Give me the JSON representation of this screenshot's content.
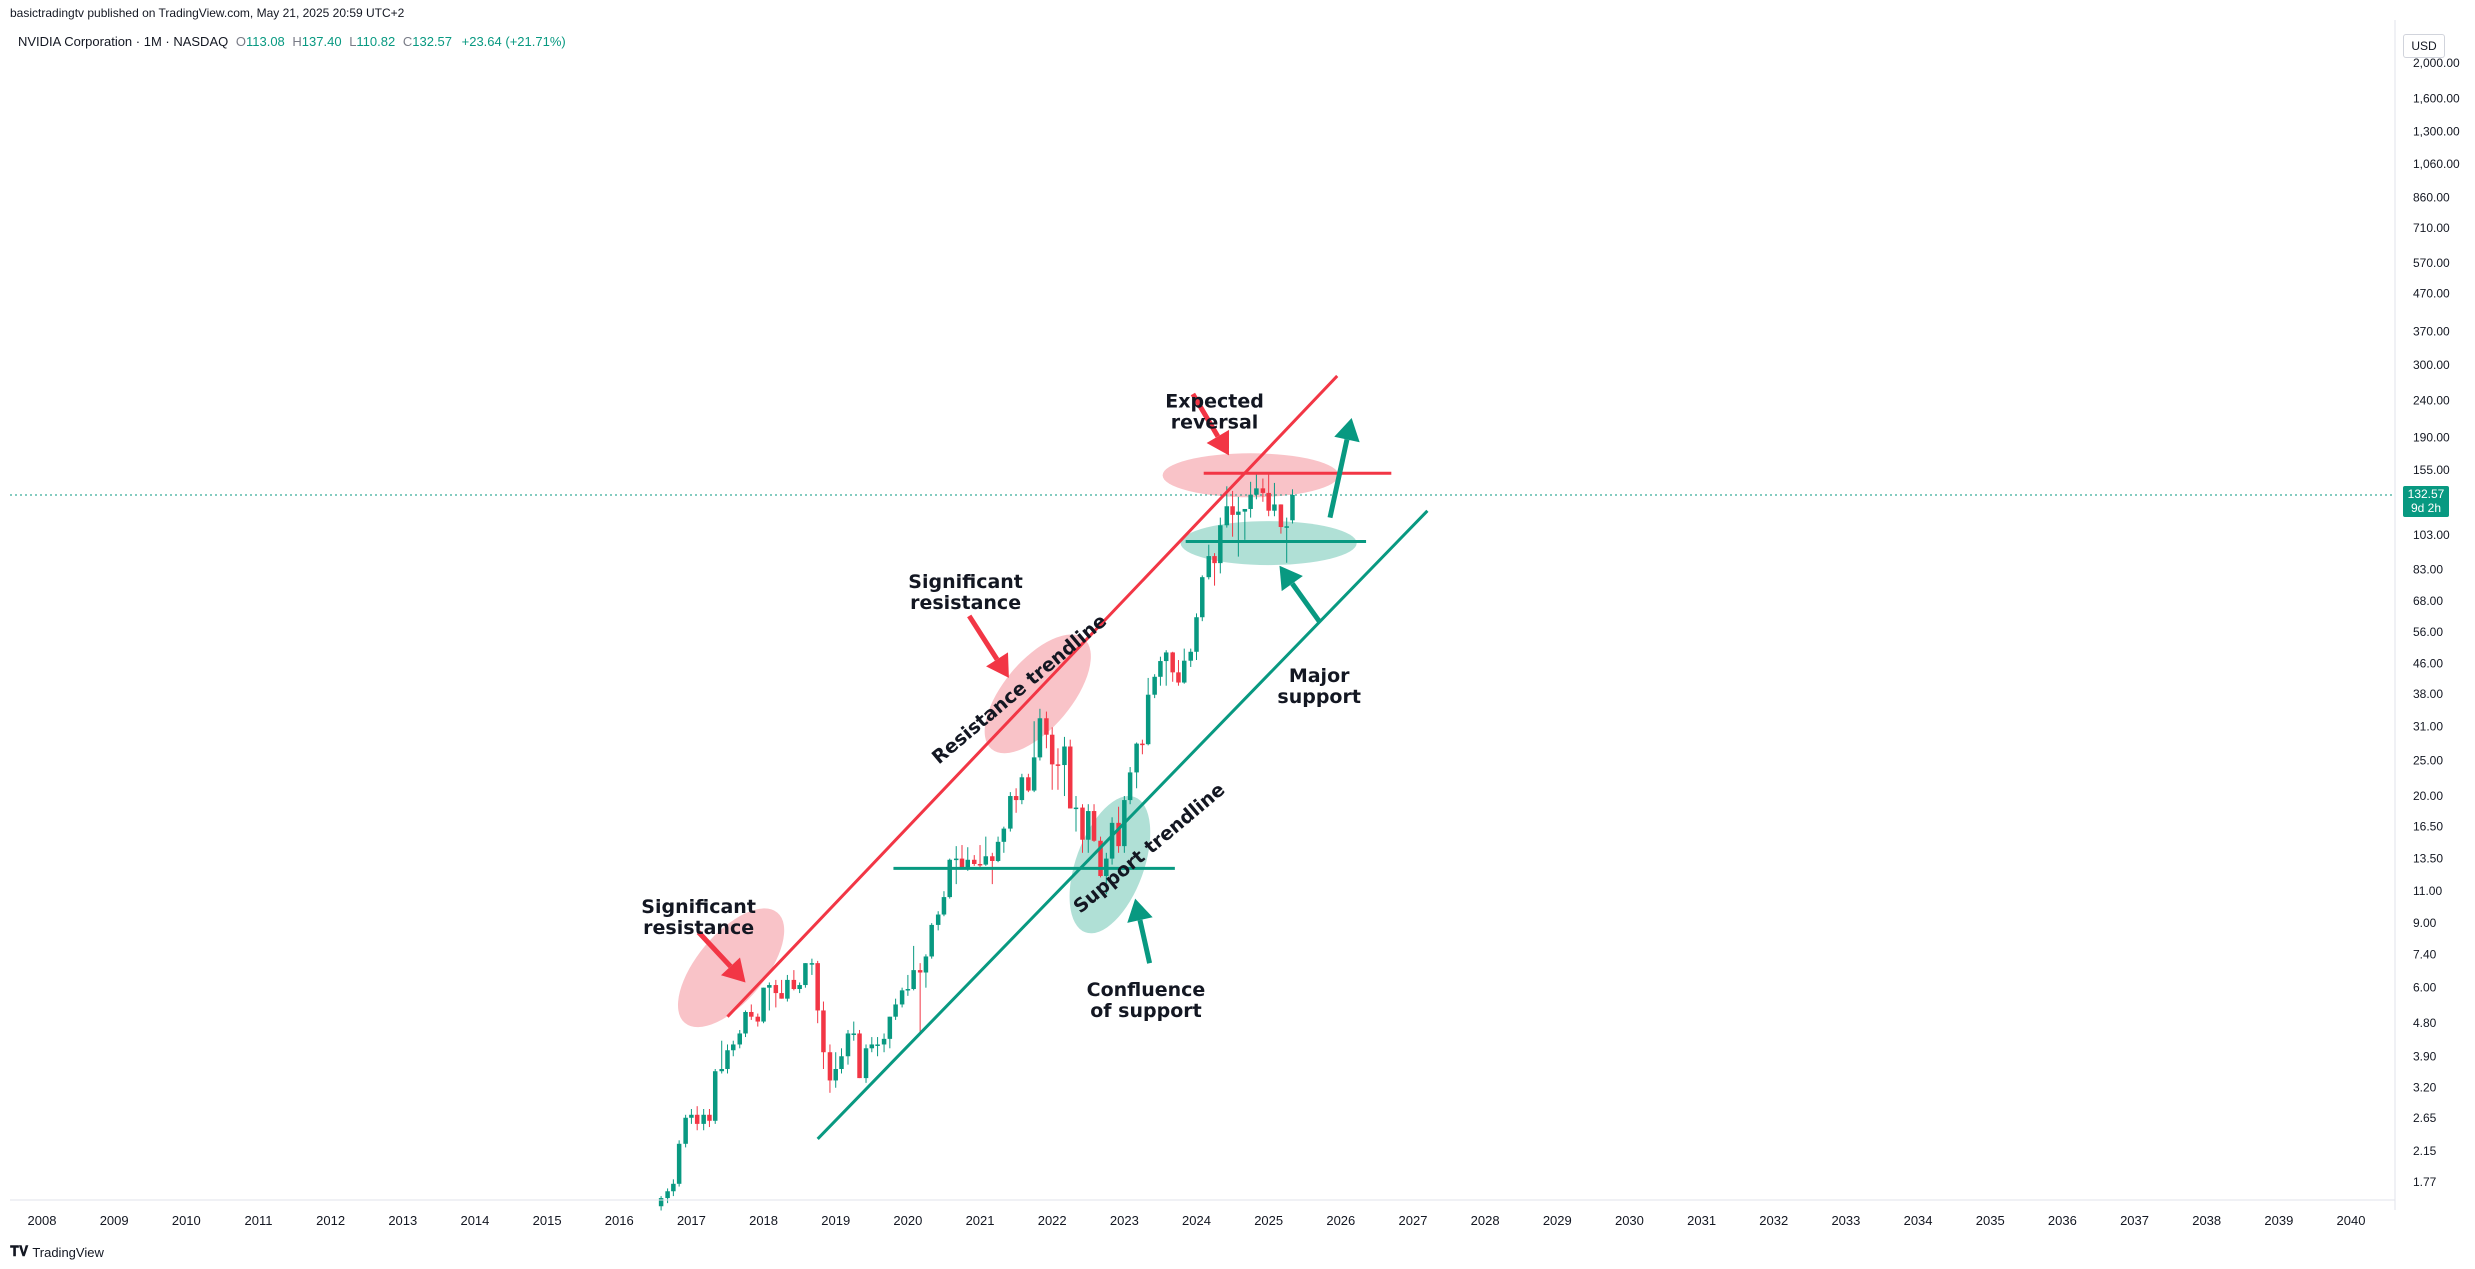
{
  "header": {
    "published": "basictradingtv published on TradingView.com, May 21, 2025 20:59 UTC+2"
  },
  "legend": {
    "symbol": "NVIDIA Corporation · 1M · NASDAQ",
    "open_label": "O",
    "open": "113.08",
    "high_label": "H",
    "high": "137.40",
    "low_label": "L",
    "low": "110.82",
    "close_label": "C",
    "close": "132.57",
    "change": "+23.64 (+21.71%)"
  },
  "currency": "USD",
  "last_price": {
    "price": "132.57",
    "countdown": "9d 2h"
  },
  "footer": {
    "brand": "TradingView"
  },
  "colors": {
    "up": "#089981",
    "down": "#f23645",
    "resistance": "#f23645",
    "support": "#089981",
    "resistance_zone": "#f7a9b0",
    "support_zone": "#8fd3c4"
  },
  "chart_data": {
    "type": "candlestick",
    "scale": "log",
    "x_axis": {
      "tick_labels": [
        "2008",
        "2009",
        "2010",
        "2011",
        "2012",
        "2013",
        "2014",
        "2015",
        "2016",
        "2017",
        "2018",
        "2019",
        "2020",
        "2021",
        "2022",
        "2023",
        "2024",
        "2025",
        "2026",
        "2027",
        "2028",
        "2029",
        "2030",
        "2031",
        "2032",
        "2033",
        "2034",
        "2035",
        "2036",
        "2037",
        "2038",
        "2039",
        "2040"
      ]
    },
    "y_axis": {
      "tick_labels": [
        "2,000.00",
        "1,600.00",
        "1,300.00",
        "1,060.00",
        "860.00",
        "710.00",
        "570.00",
        "470.00",
        "370.00",
        "300.00",
        "240.00",
        "190.00",
        "155.00",
        "103.00",
        "83.00",
        "68.00",
        "56.00",
        "46.00",
        "38.00",
        "31.00",
        "25.00",
        "20.00",
        "16.50",
        "13.50",
        "11.00",
        "9.00",
        "7.40",
        "6.00",
        "4.80",
        "3.90",
        "3.20",
        "2.65",
        "2.15",
        "1.77"
      ],
      "range": [
        1.6,
        2100
      ]
    },
    "candles": [
      {
        "t": 2016.58,
        "o": 1.52,
        "h": 1.62,
        "l": 1.48,
        "c": 1.6
      },
      {
        "t": 2016.67,
        "o": 1.6,
        "h": 1.7,
        "l": 1.55,
        "c": 1.67
      },
      {
        "t": 2016.75,
        "o": 1.67,
        "h": 1.8,
        "l": 1.62,
        "c": 1.75
      },
      {
        "t": 2016.83,
        "o": 1.75,
        "h": 2.3,
        "l": 1.72,
        "c": 2.25
      },
      {
        "t": 2016.92,
        "o": 2.25,
        "h": 2.7,
        "l": 2.2,
        "c": 2.65
      },
      {
        "t": 2017.0,
        "o": 2.65,
        "h": 2.8,
        "l": 2.55,
        "c": 2.7
      },
      {
        "t": 2017.08,
        "o": 2.7,
        "h": 2.85,
        "l": 2.45,
        "c": 2.55
      },
      {
        "t": 2017.17,
        "o": 2.55,
        "h": 2.8,
        "l": 2.45,
        "c": 2.7
      },
      {
        "t": 2017.25,
        "o": 2.7,
        "h": 2.8,
        "l": 2.5,
        "c": 2.6
      },
      {
        "t": 2017.33,
        "o": 2.6,
        "h": 3.6,
        "l": 2.55,
        "c": 3.55
      },
      {
        "t": 2017.42,
        "o": 3.55,
        "h": 4.3,
        "l": 3.5,
        "c": 3.6
      },
      {
        "t": 2017.5,
        "o": 3.6,
        "h": 4.2,
        "l": 3.5,
        "c": 4.05
      },
      {
        "t": 2017.58,
        "o": 4.05,
        "h": 4.3,
        "l": 3.9,
        "c": 4.2
      },
      {
        "t": 2017.67,
        "o": 4.2,
        "h": 4.6,
        "l": 4.1,
        "c": 4.5
      },
      {
        "t": 2017.75,
        "o": 4.5,
        "h": 5.2,
        "l": 4.4,
        "c": 5.15
      },
      {
        "t": 2017.83,
        "o": 5.15,
        "h": 5.4,
        "l": 4.9,
        "c": 5.0
      },
      {
        "t": 2017.92,
        "o": 5.0,
        "h": 5.1,
        "l": 4.7,
        "c": 4.85
      },
      {
        "t": 2018.0,
        "o": 4.85,
        "h": 6.0,
        "l": 4.8,
        "c": 6.0
      },
      {
        "t": 2018.08,
        "o": 6.0,
        "h": 6.2,
        "l": 5.2,
        "c": 6.1
      },
      {
        "t": 2018.17,
        "o": 6.1,
        "h": 6.3,
        "l": 5.3,
        "c": 5.8
      },
      {
        "t": 2018.25,
        "o": 5.8,
        "h": 6.3,
        "l": 5.6,
        "c": 5.6
      },
      {
        "t": 2018.33,
        "o": 5.6,
        "h": 6.5,
        "l": 5.5,
        "c": 6.3
      },
      {
        "t": 2018.42,
        "o": 6.3,
        "h": 6.7,
        "l": 5.9,
        "c": 5.95
      },
      {
        "t": 2018.5,
        "o": 5.95,
        "h": 6.2,
        "l": 5.8,
        "c": 6.1
      },
      {
        "t": 2018.58,
        "o": 6.1,
        "h": 7.0,
        "l": 6.0,
        "c": 7.0
      },
      {
        "t": 2018.67,
        "o": 7.0,
        "h": 7.2,
        "l": 6.5,
        "c": 7.0
      },
      {
        "t": 2018.75,
        "o": 7.0,
        "h": 7.1,
        "l": 4.8,
        "c": 5.2
      },
      {
        "t": 2018.83,
        "o": 5.2,
        "h": 5.5,
        "l": 3.6,
        "c": 4.0
      },
      {
        "t": 2018.92,
        "o": 4.0,
        "h": 4.2,
        "l": 3.1,
        "c": 3.35
      },
      {
        "t": 2019.0,
        "o": 3.35,
        "h": 4.0,
        "l": 3.2,
        "c": 3.6
      },
      {
        "t": 2019.08,
        "o": 3.6,
        "h": 4.1,
        "l": 3.5,
        "c": 3.9
      },
      {
        "t": 2019.17,
        "o": 3.9,
        "h": 4.6,
        "l": 3.7,
        "c": 4.5
      },
      {
        "t": 2019.25,
        "o": 4.5,
        "h": 4.85,
        "l": 4.3,
        "c": 4.5
      },
      {
        "t": 2019.33,
        "o": 4.5,
        "h": 4.6,
        "l": 3.4,
        "c": 3.4
      },
      {
        "t": 2019.42,
        "o": 3.4,
        "h": 4.2,
        "l": 3.3,
        "c": 4.1
      },
      {
        "t": 2019.5,
        "o": 4.1,
        "h": 4.4,
        "l": 4.0,
        "c": 4.2
      },
      {
        "t": 2019.58,
        "o": 4.2,
        "h": 4.4,
        "l": 3.9,
        "c": 4.2
      },
      {
        "t": 2019.67,
        "o": 4.2,
        "h": 4.5,
        "l": 4.0,
        "c": 4.35
      },
      {
        "t": 2019.75,
        "o": 4.35,
        "h": 5.0,
        "l": 4.1,
        "c": 5.0
      },
      {
        "t": 2019.83,
        "o": 5.0,
        "h": 5.6,
        "l": 4.9,
        "c": 5.4
      },
      {
        "t": 2019.92,
        "o": 5.4,
        "h": 6.0,
        "l": 5.3,
        "c": 5.9
      },
      {
        "t": 2020.0,
        "o": 5.9,
        "h": 6.5,
        "l": 5.7,
        "c": 5.95
      },
      {
        "t": 2020.08,
        "o": 5.95,
        "h": 7.8,
        "l": 5.9,
        "c": 6.7
      },
      {
        "t": 2020.17,
        "o": 6.7,
        "h": 7.0,
        "l": 4.5,
        "c": 6.6
      },
      {
        "t": 2020.25,
        "o": 6.6,
        "h": 7.4,
        "l": 6.0,
        "c": 7.3
      },
      {
        "t": 2020.33,
        "o": 7.3,
        "h": 9.0,
        "l": 7.2,
        "c": 8.9
      },
      {
        "t": 2020.42,
        "o": 8.9,
        "h": 9.7,
        "l": 8.6,
        "c": 9.5
      },
      {
        "t": 2020.5,
        "o": 9.5,
        "h": 11.0,
        "l": 9.4,
        "c": 10.6
      },
      {
        "t": 2020.58,
        "o": 10.6,
        "h": 13.5,
        "l": 10.5,
        "c": 13.4
      },
      {
        "t": 2020.67,
        "o": 13.4,
        "h": 14.6,
        "l": 11.5,
        "c": 13.5
      },
      {
        "t": 2020.75,
        "o": 13.5,
        "h": 14.7,
        "l": 12.8,
        "c": 12.8
      },
      {
        "t": 2020.83,
        "o": 12.8,
        "h": 14.5,
        "l": 12.5,
        "c": 13.4
      },
      {
        "t": 2020.92,
        "o": 13.4,
        "h": 13.8,
        "l": 12.9,
        "c": 13.05
      },
      {
        "t": 2021.0,
        "o": 13.05,
        "h": 14.7,
        "l": 12.7,
        "c": 13.0
      },
      {
        "t": 2021.08,
        "o": 13.0,
        "h": 15.5,
        "l": 12.9,
        "c": 13.7
      },
      {
        "t": 2021.17,
        "o": 13.7,
        "h": 14.0,
        "l": 11.5,
        "c": 13.3
      },
      {
        "t": 2021.25,
        "o": 13.3,
        "h": 15.5,
        "l": 13.2,
        "c": 15.0
      },
      {
        "t": 2021.33,
        "o": 15.0,
        "h": 16.5,
        "l": 14.0,
        "c": 16.3
      },
      {
        "t": 2021.42,
        "o": 16.3,
        "h": 20.5,
        "l": 16.0,
        "c": 20.0
      },
      {
        "t": 2021.5,
        "o": 20.0,
        "h": 21.0,
        "l": 18.0,
        "c": 19.5
      },
      {
        "t": 2021.58,
        "o": 19.5,
        "h": 23.0,
        "l": 19.0,
        "c": 22.5
      },
      {
        "t": 2021.67,
        "o": 22.5,
        "h": 23.0,
        "l": 20.5,
        "c": 20.7
      },
      {
        "t": 2021.75,
        "o": 20.7,
        "h": 32.0,
        "l": 20.5,
        "c": 25.5
      },
      {
        "t": 2021.83,
        "o": 25.5,
        "h": 34.6,
        "l": 25.0,
        "c": 32.6
      },
      {
        "t": 2021.92,
        "o": 32.6,
        "h": 34.0,
        "l": 27.0,
        "c": 29.4
      },
      {
        "t": 2022.0,
        "o": 29.4,
        "h": 30.8,
        "l": 20.8,
        "c": 24.4
      },
      {
        "t": 2022.08,
        "o": 24.4,
        "h": 27.0,
        "l": 20.8,
        "c": 24.3
      },
      {
        "t": 2022.17,
        "o": 24.3,
        "h": 29.0,
        "l": 20.0,
        "c": 27.3
      },
      {
        "t": 2022.25,
        "o": 27.3,
        "h": 28.5,
        "l": 18.5,
        "c": 18.5
      },
      {
        "t": 2022.33,
        "o": 18.5,
        "h": 20.0,
        "l": 16.0,
        "c": 18.6
      },
      {
        "t": 2022.42,
        "o": 18.6,
        "h": 19.0,
        "l": 14.0,
        "c": 15.2
      },
      {
        "t": 2022.5,
        "o": 15.2,
        "h": 19.0,
        "l": 14.0,
        "c": 18.2
      },
      {
        "t": 2022.58,
        "o": 18.2,
        "h": 19.0,
        "l": 15.0,
        "c": 15.1
      },
      {
        "t": 2022.67,
        "o": 15.1,
        "h": 15.5,
        "l": 12.0,
        "c": 12.1
      },
      {
        "t": 2022.75,
        "o": 12.1,
        "h": 14.0,
        "l": 10.8,
        "c": 13.5
      },
      {
        "t": 2022.83,
        "o": 13.5,
        "h": 17.5,
        "l": 13.0,
        "c": 16.9
      },
      {
        "t": 2022.92,
        "o": 16.9,
        "h": 18.7,
        "l": 14.0,
        "c": 14.6
      },
      {
        "t": 2023.0,
        "o": 14.6,
        "h": 20.0,
        "l": 14.0,
        "c": 19.5
      },
      {
        "t": 2023.08,
        "o": 19.5,
        "h": 24.0,
        "l": 19.0,
        "c": 23.2
      },
      {
        "t": 2023.17,
        "o": 23.2,
        "h": 28.0,
        "l": 21.0,
        "c": 27.8
      },
      {
        "t": 2023.25,
        "o": 27.8,
        "h": 28.5,
        "l": 26.0,
        "c": 27.7
      },
      {
        "t": 2023.33,
        "o": 27.7,
        "h": 42.0,
        "l": 27.5,
        "c": 37.8
      },
      {
        "t": 2023.42,
        "o": 37.8,
        "h": 43.0,
        "l": 37.0,
        "c": 42.3
      },
      {
        "t": 2023.5,
        "o": 42.3,
        "h": 48.0,
        "l": 40.0,
        "c": 46.7
      },
      {
        "t": 2023.58,
        "o": 46.7,
        "h": 50.0,
        "l": 40.0,
        "c": 49.3
      },
      {
        "t": 2023.67,
        "o": 49.3,
        "h": 49.5,
        "l": 41.0,
        "c": 43.5
      },
      {
        "t": 2023.75,
        "o": 43.5,
        "h": 47.0,
        "l": 40.0,
        "c": 40.8
      },
      {
        "t": 2023.83,
        "o": 40.8,
        "h": 50.5,
        "l": 40.5,
        "c": 46.8
      },
      {
        "t": 2023.92,
        "o": 46.8,
        "h": 50.5,
        "l": 45.0,
        "c": 49.5
      },
      {
        "t": 2024.0,
        "o": 49.5,
        "h": 63.0,
        "l": 47.0,
        "c": 61.5
      },
      {
        "t": 2024.08,
        "o": 61.5,
        "h": 80.0,
        "l": 60.0,
        "c": 79.1
      },
      {
        "t": 2024.17,
        "o": 79.1,
        "h": 97.0,
        "l": 78.0,
        "c": 90.3
      },
      {
        "t": 2024.25,
        "o": 90.3,
        "h": 92.0,
        "l": 75.0,
        "c": 86.4
      },
      {
        "t": 2024.33,
        "o": 86.4,
        "h": 115.0,
        "l": 81.0,
        "c": 109.6
      },
      {
        "t": 2024.42,
        "o": 109.6,
        "h": 140.0,
        "l": 108.0,
        "c": 123.5
      },
      {
        "t": 2024.5,
        "o": 123.5,
        "h": 136.0,
        "l": 102.0,
        "c": 117.0
      },
      {
        "t": 2024.58,
        "o": 117.0,
        "h": 131.0,
        "l": 90.0,
        "c": 119.4
      },
      {
        "t": 2024.67,
        "o": 119.4,
        "h": 120.0,
        "l": 100.0,
        "c": 121.4
      },
      {
        "t": 2024.75,
        "o": 121.4,
        "h": 144.0,
        "l": 115.0,
        "c": 132.8
      },
      {
        "t": 2024.83,
        "o": 132.8,
        "h": 152.0,
        "l": 129.0,
        "c": 138.2
      },
      {
        "t": 2024.92,
        "o": 138.2,
        "h": 147.0,
        "l": 127.0,
        "c": 134.3
      },
      {
        "t": 2025.0,
        "o": 134.3,
        "h": 153.0,
        "l": 116.0,
        "c": 120.1
      },
      {
        "t": 2025.08,
        "o": 120.1,
        "h": 143.0,
        "l": 116.0,
        "c": 124.9
      },
      {
        "t": 2025.17,
        "o": 124.9,
        "h": 125.0,
        "l": 104.0,
        "c": 108.4
      },
      {
        "t": 2025.25,
        "o": 108.4,
        "h": 115.0,
        "l": 86.6,
        "c": 108.9
      },
      {
        "t": 2025.33,
        "o": 113.08,
        "h": 137.4,
        "l": 110.82,
        "c": 132.57
      }
    ],
    "annotations": [
      {
        "text": "Expected\nreversal",
        "x": 2024.25,
        "y": 230
      },
      {
        "text": "Significant\nresistance",
        "x": 2020.8,
        "y": 74
      },
      {
        "text": "Significant\nresistance",
        "x": 2017.1,
        "y": 9.6
      },
      {
        "text": "Major\nsupport",
        "x": 2025.7,
        "y": 41
      },
      {
        "text": "Confluence\nof support",
        "x": 2023.3,
        "y": 5.7
      },
      {
        "text": "Resistance trendline",
        "x": 2021.6,
        "y": 38,
        "angle": -40
      },
      {
        "text": "Support trendline",
        "x": 2023.4,
        "y": 14,
        "angle": -40
      }
    ],
    "trendlines": {
      "resistance": {
        "x1": 2017.5,
        "y1": 5.0,
        "x2": 2025.95,
        "y2": 280
      },
      "support": {
        "x1": 2018.75,
        "y1": 2.32,
        "x2": 2027.2,
        "y2": 120
      },
      "horizontal_resistance": {
        "x1": 2024.1,
        "x2": 2026.7,
        "y": 152
      },
      "horizontal_support": {
        "x1": 2023.85,
        "x2": 2026.35,
        "y": 99
      },
      "confluence_support": {
        "x1": 2019.8,
        "x2": 2023.7,
        "y": 12.7
      }
    },
    "zones": [
      {
        "kind": "resistance",
        "cx": 2017.55,
        "cy": 6.8,
        "angle": -50
      },
      {
        "kind": "resistance",
        "cx": 2021.8,
        "cy": 38,
        "angle": -50
      },
      {
        "kind": "resistance",
        "cx": 2024.75,
        "cy": 150,
        "angle": 0
      },
      {
        "kind": "support",
        "cx": 2022.8,
        "cy": 13,
        "angle": -70
      },
      {
        "kind": "support",
        "cx": 2025.0,
        "cy": 98,
        "angle": 0
      }
    ],
    "arrows": [
      {
        "color": "down",
        "from": [
          2023.95,
          250
        ],
        "to": [
          2024.45,
          170
        ]
      },
      {
        "color": "down",
        "from": [
          2020.85,
          62
        ],
        "to": [
          2021.4,
          42
        ]
      },
      {
        "color": "down",
        "from": [
          2017.1,
          8.5
        ],
        "to": [
          2017.75,
          6.2
        ]
      },
      {
        "color": "up",
        "from": [
          2025.7,
          60
        ],
        "to": [
          2025.15,
          85
        ]
      },
      {
        "color": "up",
        "from": [
          2023.35,
          7.0
        ],
        "to": [
          2023.15,
          10.5
        ]
      },
      {
        "color": "up",
        "from": [
          2025.85,
          115
        ],
        "to": [
          2026.15,
          215
        ]
      }
    ]
  }
}
